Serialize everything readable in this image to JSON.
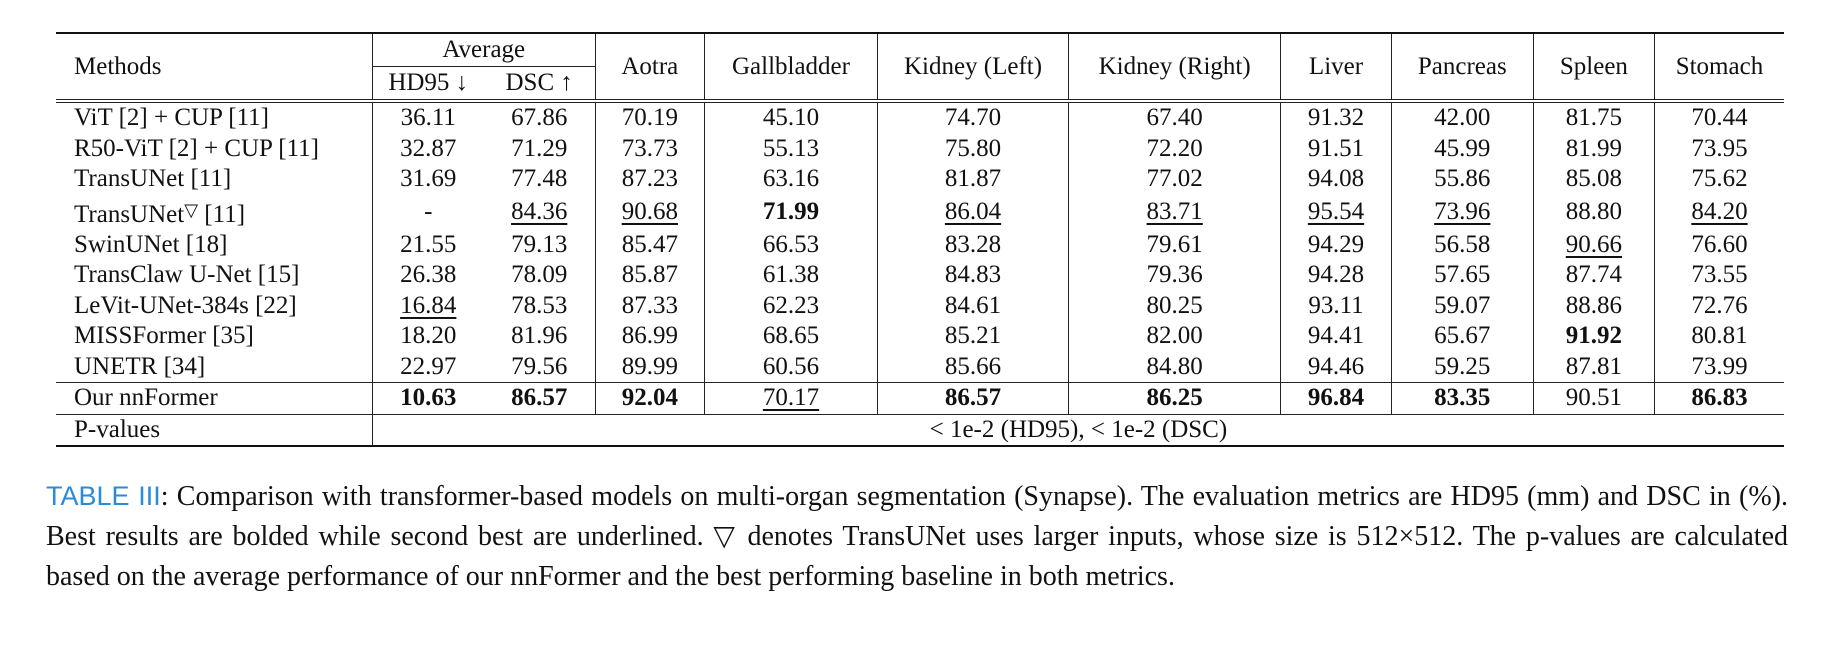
{
  "table": {
    "header": {
      "methods": "Methods",
      "average": "Average",
      "hd95": "HD95 ↓",
      "dsc": "DSC ↑",
      "organs": [
        "Aotra",
        "Gallbladder",
        "Kidney (Left)",
        "Kidney (Right)",
        "Liver",
        "Pancreas",
        "Spleen",
        "Stomach"
      ]
    },
    "rows": [
      {
        "method": "ViT [2] + CUP [11]",
        "hd95": "36.11",
        "dsc": "67.86",
        "organs": [
          "70.19",
          "45.10",
          "74.70",
          "67.40",
          "91.32",
          "42.00",
          "81.75",
          "70.44"
        ]
      },
      {
        "method": "R50-ViT [2] + CUP [11]",
        "hd95": "32.87",
        "dsc": "71.29",
        "organs": [
          "73.73",
          "55.13",
          "75.80",
          "72.20",
          "91.51",
          "45.99",
          "81.99",
          "73.95"
        ]
      },
      {
        "method": "TransUNet [11]",
        "hd95": "31.69",
        "dsc": "77.48",
        "organs": [
          "87.23",
          "63.16",
          "81.87",
          "77.02",
          "94.08",
          "55.86",
          "85.08",
          "75.62"
        ]
      },
      {
        "method": "TransUNet",
        "method_mark": "▽",
        "method_ref": " [11]",
        "hd95": "-",
        "dsc": "84.36",
        "organs": [
          "90.68",
          "71.99",
          "86.04",
          "83.71",
          "95.54",
          "73.96",
          "88.80",
          "84.20"
        ]
      },
      {
        "method": "SwinUNet [18]",
        "hd95": "21.55",
        "dsc": "79.13",
        "organs": [
          "85.47",
          "66.53",
          "83.28",
          "79.61",
          "94.29",
          "56.58",
          "90.66",
          "76.60"
        ]
      },
      {
        "method": "TransClaw U-Net [15]",
        "hd95": "26.38",
        "dsc": "78.09",
        "organs": [
          "85.87",
          "61.38",
          "84.83",
          "79.36",
          "94.28",
          "57.65",
          "87.74",
          "73.55"
        ]
      },
      {
        "method": "LeVit-UNet-384s [22]",
        "hd95": "16.84",
        "dsc": "78.53",
        "organs": [
          "87.33",
          "62.23",
          "84.61",
          "80.25",
          "93.11",
          "59.07",
          "88.86",
          "72.76"
        ]
      },
      {
        "method": "MISSFormer [35]",
        "hd95": "18.20",
        "dsc": "81.96",
        "organs": [
          "86.99",
          "68.65",
          "85.21",
          "82.00",
          "94.41",
          "65.67",
          "91.92",
          "80.81"
        ]
      },
      {
        "method": "UNETR [34]",
        "hd95": "22.97",
        "dsc": "79.56",
        "organs": [
          "89.99",
          "60.56",
          "85.66",
          "84.80",
          "94.46",
          "59.25",
          "87.81",
          "73.99"
        ]
      }
    ],
    "ours": {
      "method": "Our nnFormer",
      "hd95": "10.63",
      "dsc": "86.57",
      "organs": [
        "92.04",
        "70.17",
        "86.57",
        "86.25",
        "96.84",
        "83.35",
        "90.51",
        "86.83"
      ]
    },
    "pvalues": {
      "label": "P-values",
      "text": "< 1e-2 (HD95), < 1e-2 (DSC)"
    }
  },
  "caption": {
    "label": "TABLE III",
    "text": ": Comparison with transformer-based models on multi-organ segmentation (Synapse). The evaluation metrics are HD95 (mm) and DSC in (%). Best results are bolded while second best are underlined. ▽ denotes TransUNet uses larger inputs, whose size is 512×512. The p-values are calculated based on the average performance of our nnFormer and the best performing baseline in both metrics."
  }
}
